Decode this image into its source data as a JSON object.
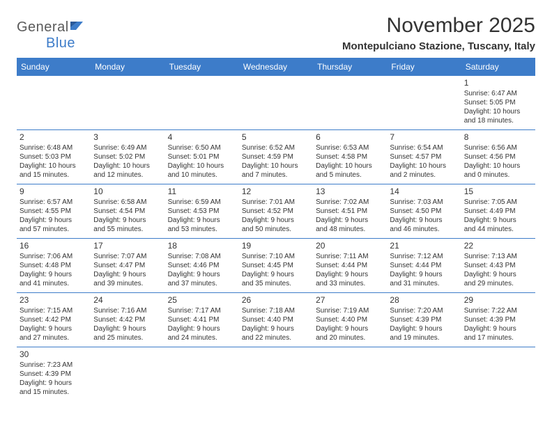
{
  "logo": {
    "text1": "General",
    "text2": "Blue"
  },
  "title": "November 2025",
  "location": "Montepulciano Stazione, Tuscany, Italy",
  "headers": [
    "Sunday",
    "Monday",
    "Tuesday",
    "Wednesday",
    "Thursday",
    "Friday",
    "Saturday"
  ],
  "colors": {
    "header_bg": "#3d7cc9",
    "header_fg": "#ffffff",
    "border": "#3d7cc9",
    "text": "#333333"
  },
  "weeks": [
    [
      null,
      null,
      null,
      null,
      null,
      null,
      {
        "n": "1",
        "sr": "Sunrise: 6:47 AM",
        "ss": "Sunset: 5:05 PM",
        "d1": "Daylight: 10 hours",
        "d2": "and 18 minutes."
      }
    ],
    [
      {
        "n": "2",
        "sr": "Sunrise: 6:48 AM",
        "ss": "Sunset: 5:03 PM",
        "d1": "Daylight: 10 hours",
        "d2": "and 15 minutes."
      },
      {
        "n": "3",
        "sr": "Sunrise: 6:49 AM",
        "ss": "Sunset: 5:02 PM",
        "d1": "Daylight: 10 hours",
        "d2": "and 12 minutes."
      },
      {
        "n": "4",
        "sr": "Sunrise: 6:50 AM",
        "ss": "Sunset: 5:01 PM",
        "d1": "Daylight: 10 hours",
        "d2": "and 10 minutes."
      },
      {
        "n": "5",
        "sr": "Sunrise: 6:52 AM",
        "ss": "Sunset: 4:59 PM",
        "d1": "Daylight: 10 hours",
        "d2": "and 7 minutes."
      },
      {
        "n": "6",
        "sr": "Sunrise: 6:53 AM",
        "ss": "Sunset: 4:58 PM",
        "d1": "Daylight: 10 hours",
        "d2": "and 5 minutes."
      },
      {
        "n": "7",
        "sr": "Sunrise: 6:54 AM",
        "ss": "Sunset: 4:57 PM",
        "d1": "Daylight: 10 hours",
        "d2": "and 2 minutes."
      },
      {
        "n": "8",
        "sr": "Sunrise: 6:56 AM",
        "ss": "Sunset: 4:56 PM",
        "d1": "Daylight: 10 hours",
        "d2": "and 0 minutes."
      }
    ],
    [
      {
        "n": "9",
        "sr": "Sunrise: 6:57 AM",
        "ss": "Sunset: 4:55 PM",
        "d1": "Daylight: 9 hours",
        "d2": "and 57 minutes."
      },
      {
        "n": "10",
        "sr": "Sunrise: 6:58 AM",
        "ss": "Sunset: 4:54 PM",
        "d1": "Daylight: 9 hours",
        "d2": "and 55 minutes."
      },
      {
        "n": "11",
        "sr": "Sunrise: 6:59 AM",
        "ss": "Sunset: 4:53 PM",
        "d1": "Daylight: 9 hours",
        "d2": "and 53 minutes."
      },
      {
        "n": "12",
        "sr": "Sunrise: 7:01 AM",
        "ss": "Sunset: 4:52 PM",
        "d1": "Daylight: 9 hours",
        "d2": "and 50 minutes."
      },
      {
        "n": "13",
        "sr": "Sunrise: 7:02 AM",
        "ss": "Sunset: 4:51 PM",
        "d1": "Daylight: 9 hours",
        "d2": "and 48 minutes."
      },
      {
        "n": "14",
        "sr": "Sunrise: 7:03 AM",
        "ss": "Sunset: 4:50 PM",
        "d1": "Daylight: 9 hours",
        "d2": "and 46 minutes."
      },
      {
        "n": "15",
        "sr": "Sunrise: 7:05 AM",
        "ss": "Sunset: 4:49 PM",
        "d1": "Daylight: 9 hours",
        "d2": "and 44 minutes."
      }
    ],
    [
      {
        "n": "16",
        "sr": "Sunrise: 7:06 AM",
        "ss": "Sunset: 4:48 PM",
        "d1": "Daylight: 9 hours",
        "d2": "and 41 minutes."
      },
      {
        "n": "17",
        "sr": "Sunrise: 7:07 AM",
        "ss": "Sunset: 4:47 PM",
        "d1": "Daylight: 9 hours",
        "d2": "and 39 minutes."
      },
      {
        "n": "18",
        "sr": "Sunrise: 7:08 AM",
        "ss": "Sunset: 4:46 PM",
        "d1": "Daylight: 9 hours",
        "d2": "and 37 minutes."
      },
      {
        "n": "19",
        "sr": "Sunrise: 7:10 AM",
        "ss": "Sunset: 4:45 PM",
        "d1": "Daylight: 9 hours",
        "d2": "and 35 minutes."
      },
      {
        "n": "20",
        "sr": "Sunrise: 7:11 AM",
        "ss": "Sunset: 4:44 PM",
        "d1": "Daylight: 9 hours",
        "d2": "and 33 minutes."
      },
      {
        "n": "21",
        "sr": "Sunrise: 7:12 AM",
        "ss": "Sunset: 4:44 PM",
        "d1": "Daylight: 9 hours",
        "d2": "and 31 minutes."
      },
      {
        "n": "22",
        "sr": "Sunrise: 7:13 AM",
        "ss": "Sunset: 4:43 PM",
        "d1": "Daylight: 9 hours",
        "d2": "and 29 minutes."
      }
    ],
    [
      {
        "n": "23",
        "sr": "Sunrise: 7:15 AM",
        "ss": "Sunset: 4:42 PM",
        "d1": "Daylight: 9 hours",
        "d2": "and 27 minutes."
      },
      {
        "n": "24",
        "sr": "Sunrise: 7:16 AM",
        "ss": "Sunset: 4:42 PM",
        "d1": "Daylight: 9 hours",
        "d2": "and 25 minutes."
      },
      {
        "n": "25",
        "sr": "Sunrise: 7:17 AM",
        "ss": "Sunset: 4:41 PM",
        "d1": "Daylight: 9 hours",
        "d2": "and 24 minutes."
      },
      {
        "n": "26",
        "sr": "Sunrise: 7:18 AM",
        "ss": "Sunset: 4:40 PM",
        "d1": "Daylight: 9 hours",
        "d2": "and 22 minutes."
      },
      {
        "n": "27",
        "sr": "Sunrise: 7:19 AM",
        "ss": "Sunset: 4:40 PM",
        "d1": "Daylight: 9 hours",
        "d2": "and 20 minutes."
      },
      {
        "n": "28",
        "sr": "Sunrise: 7:20 AM",
        "ss": "Sunset: 4:39 PM",
        "d1": "Daylight: 9 hours",
        "d2": "and 19 minutes."
      },
      {
        "n": "29",
        "sr": "Sunrise: 7:22 AM",
        "ss": "Sunset: 4:39 PM",
        "d1": "Daylight: 9 hours",
        "d2": "and 17 minutes."
      }
    ],
    [
      {
        "n": "30",
        "sr": "Sunrise: 7:23 AM",
        "ss": "Sunset: 4:39 PM",
        "d1": "Daylight: 9 hours",
        "d2": "and 15 minutes."
      },
      null,
      null,
      null,
      null,
      null,
      null
    ]
  ]
}
